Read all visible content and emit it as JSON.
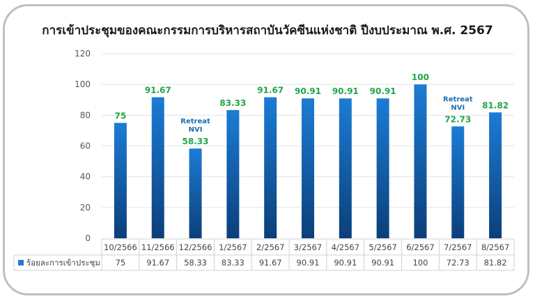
{
  "chart_data": {
    "type": "bar",
    "title": "การเข้าประชุมของคณะกรรมการบริหารสถาบันวัคซีนแห่งชาติ ปีงบประมาณ พ.ศ. 2567",
    "categories": [
      "10/2566",
      "11/2566",
      "12/2566",
      "1/2567",
      "2/2567",
      "3/2567",
      "4/2567",
      "5/2567",
      "6/2567",
      "7/2567",
      "8/2567"
    ],
    "series": [
      {
        "name": "ร้อยละการเข้าประชุม",
        "values": [
          75,
          91.67,
          58.33,
          83.33,
          91.67,
          90.91,
          90.91,
          90.91,
          100,
          72.73,
          81.82
        ]
      }
    ],
    "value_labels": [
      "75",
      "91.67",
      "58.33",
      "83.33",
      "91.67",
      "90.91",
      "90.91",
      "90.91",
      "100",
      "72.73",
      "81.82"
    ],
    "annotations": [
      {
        "category": "12/2566",
        "lines": [
          "Retreat",
          "NVI"
        ]
      },
      {
        "category": "7/2567",
        "lines": [
          "Retreat",
          "NVI"
        ]
      }
    ],
    "yticks": [
      "0",
      "20",
      "40",
      "60",
      "80",
      "100",
      "120"
    ],
    "ylim": [
      0,
      120
    ],
    "grid": true,
    "legend": "data-table",
    "colors": {
      "bar_top": "#1c7cd5",
      "bar_bottom": "#0b3f7a",
      "value_label": "#1ea64a",
      "annotation": "#1a6fae",
      "grid": "#e3e3e3",
      "table_border": "#d0d0d0"
    }
  }
}
